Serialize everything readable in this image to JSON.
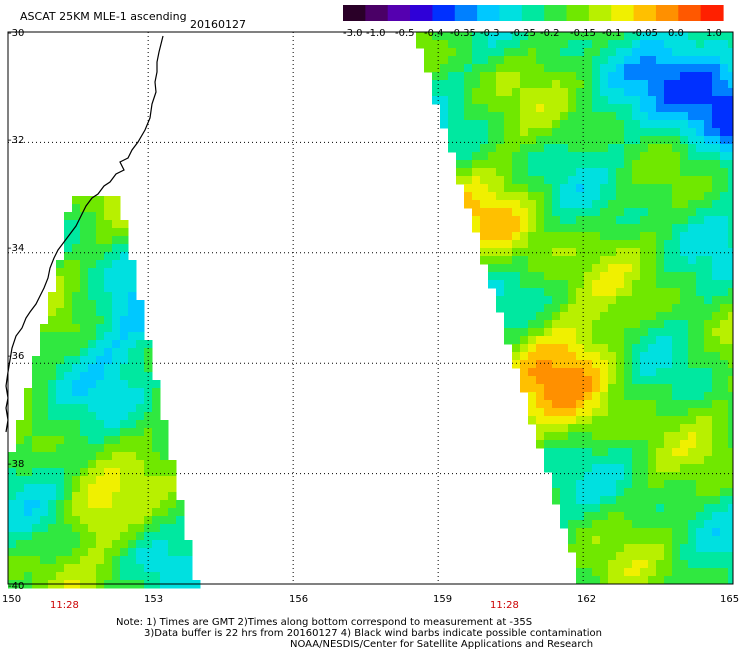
{
  "header": {
    "title": "ASCAT 25KM MLE-1 ascending",
    "date": "20160127"
  },
  "colorbar": {
    "tick_labels": [
      "-3.0",
      "-1.0",
      "-0.5",
      "-0.4",
      "-0.35",
      "-0.3",
      "-0.25",
      "-0.2",
      "-0.15",
      "-0.1",
      "-0.05",
      "0.0",
      "1.0"
    ],
    "colors": [
      "#2a0028",
      "#4a0066",
      "#5500b0",
      "#2f00d8",
      "#0030ff",
      "#0080ff",
      "#00c8ff",
      "#00e0e0",
      "#00e8a0",
      "#30e840",
      "#70e800",
      "#b8f000",
      "#f0f000",
      "#ffc000",
      "#ff9000",
      "#ff5800",
      "#ff2000"
    ]
  },
  "axes": {
    "lat_labels": [
      "-30",
      "-32",
      "-34",
      "-36",
      "-38",
      "-40"
    ],
    "lon_labels": [
      "150",
      "153",
      "156",
      "159",
      "162",
      "165"
    ]
  },
  "pass_times": [
    "11:28",
    "11:28"
  ],
  "notes": {
    "line1": "Note: 1) Times are GMT 2)Times along bottom correspond to measurement at -35S",
    "line2": "3)Data buffer is 22 hrs from 20160127 4) Black wind barbs indicate possible contamination",
    "line3": "NOAA/NESDIS/Center for Satellite Applications and Research"
  },
  "map": {
    "lat_range": [
      -40,
      -30
    ],
    "lon_range": [
      150,
      165
    ],
    "field": "MLE-1",
    "land_color": "#ffffff",
    "coast_color": "#000000",
    "time_color": "#cc0000"
  }
}
